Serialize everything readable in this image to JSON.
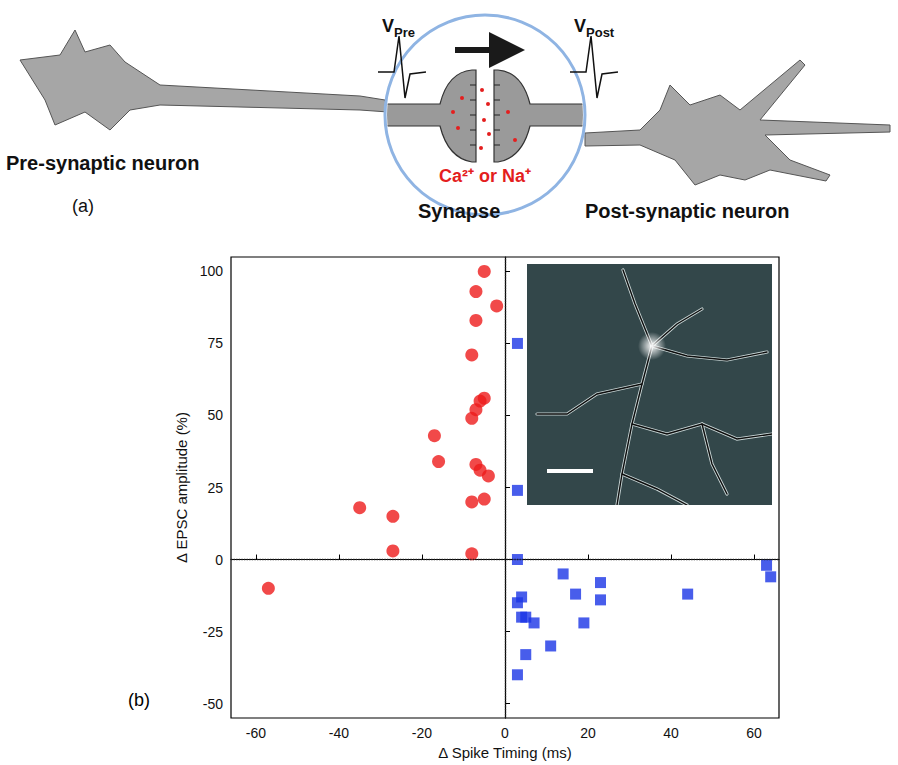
{
  "diagram": {
    "panel_label": "(a)",
    "labels": {
      "pre_neuron": "Pre-synaptic neuron",
      "synapse": "Synapse",
      "post_neuron": "Post-synaptic neuron",
      "ions": "Ca²⁺ or Na⁺"
    },
    "voltages": [
      {
        "symbol": "V",
        "subscript": "Pre"
      },
      {
        "symbol": "V",
        "subscript": "Post"
      }
    ]
  },
  "chart_data": {
    "type": "scatter",
    "panel_label": "(b)",
    "x_label": "Δ Spike Timing (ms)",
    "y_label": "Δ EPSC amplitude (%)",
    "xlim": [
      -66,
      66
    ],
    "xticks": [
      -60,
      -40,
      -20,
      0,
      20,
      40,
      60
    ],
    "ylim": [
      -55,
      105
    ],
    "yticks": [
      -50,
      -25,
      0,
      25,
      50,
      75,
      100
    ],
    "reference_lines": {
      "x": 0,
      "y": 0
    },
    "grid": false,
    "series": [
      {
        "color": "#ee1c1c",
        "marker": "circle",
        "x": [
          -57,
          -35,
          -27,
          -27,
          -17,
          -16,
          -8,
          -8,
          -8,
          -8,
          -7,
          -7,
          -7,
          -6,
          -6,
          -5,
          -5,
          -5,
          -4,
          -2,
          -7
        ],
        "values": [
          -10,
          18,
          15,
          3,
          43,
          34,
          71,
          49,
          20,
          2,
          93,
          83,
          33,
          55,
          31,
          100,
          56,
          21,
          29,
          88,
          52
        ]
      },
      {
        "color": "#1a35e6",
        "marker": "square",
        "x": [
          3,
          3,
          3,
          3,
          4,
          4,
          3,
          5,
          7,
          5,
          11,
          14,
          17,
          19,
          23,
          23,
          44,
          63,
          64
        ],
        "values": [
          75,
          24,
          0,
          -15,
          -13,
          -20,
          -40,
          -33,
          -22,
          -20,
          -30,
          -5,
          -12,
          -22,
          -8,
          -14,
          -12,
          -2,
          -6
        ]
      }
    ]
  }
}
